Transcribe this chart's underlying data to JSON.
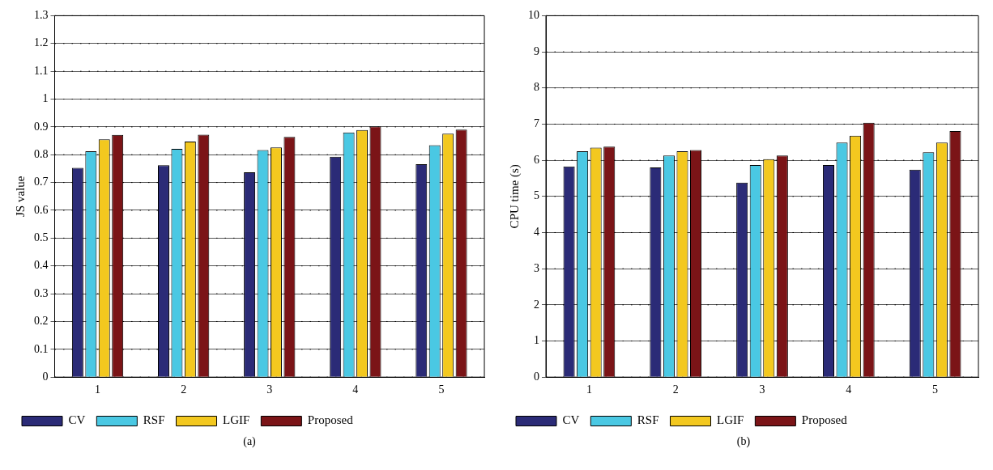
{
  "chart_data": [
    {
      "type": "bar",
      "ylabel": "JS value",
      "categories": [
        "1",
        "2",
        "3",
        "4",
        "5"
      ],
      "ylim": [
        0,
        1.3
      ],
      "yticks": [
        0,
        0.1,
        0.2,
        0.3,
        0.4,
        0.5,
        0.6,
        0.7,
        0.8,
        0.9,
        1,
        1.1,
        1.2,
        1.3
      ],
      "grid": "y",
      "legend": "bottom",
      "annotations": [
        "(a)"
      ],
      "series": [
        {
          "name": "CV",
          "color": "#2b2b77",
          "values": [
            0.753,
            0.762,
            0.737,
            0.793,
            0.766
          ]
        },
        {
          "name": "RSF",
          "color": "#4ac8e3",
          "values": [
            0.812,
            0.821,
            0.817,
            0.88,
            0.834
          ]
        },
        {
          "name": "LGIF",
          "color": "#f3c81f",
          "values": [
            0.855,
            0.847,
            0.826,
            0.889,
            0.876
          ]
        },
        {
          "name": "Proposed",
          "color": "#7b1417",
          "values": [
            0.871,
            0.872,
            0.864,
            0.902,
            0.89
          ]
        }
      ]
    },
    {
      "type": "bar",
      "ylabel": "CPU time (s)",
      "categories": [
        "1",
        "2",
        "3",
        "4",
        "5"
      ],
      "ylim": [
        0,
        10
      ],
      "yticks": [
        0,
        1,
        2,
        3,
        4,
        5,
        6,
        7,
        8,
        9,
        10
      ],
      "grid": "y",
      "legend": "bottom",
      "annotations": [
        "(b)"
      ],
      "series": [
        {
          "name": "CV",
          "color": "#2b2b77",
          "values": [
            5.83,
            5.8,
            5.38,
            5.87,
            5.74
          ]
        },
        {
          "name": "RSF",
          "color": "#4ac8e3",
          "values": [
            6.25,
            6.13,
            5.87,
            6.49,
            6.22
          ]
        },
        {
          "name": "LGIF",
          "color": "#f3c81f",
          "values": [
            6.35,
            6.25,
            6.03,
            6.68,
            6.49
          ]
        },
        {
          "name": "Proposed",
          "color": "#7b1417",
          "values": [
            6.38,
            6.28,
            6.13,
            7.04,
            6.81
          ]
        }
      ]
    }
  ]
}
